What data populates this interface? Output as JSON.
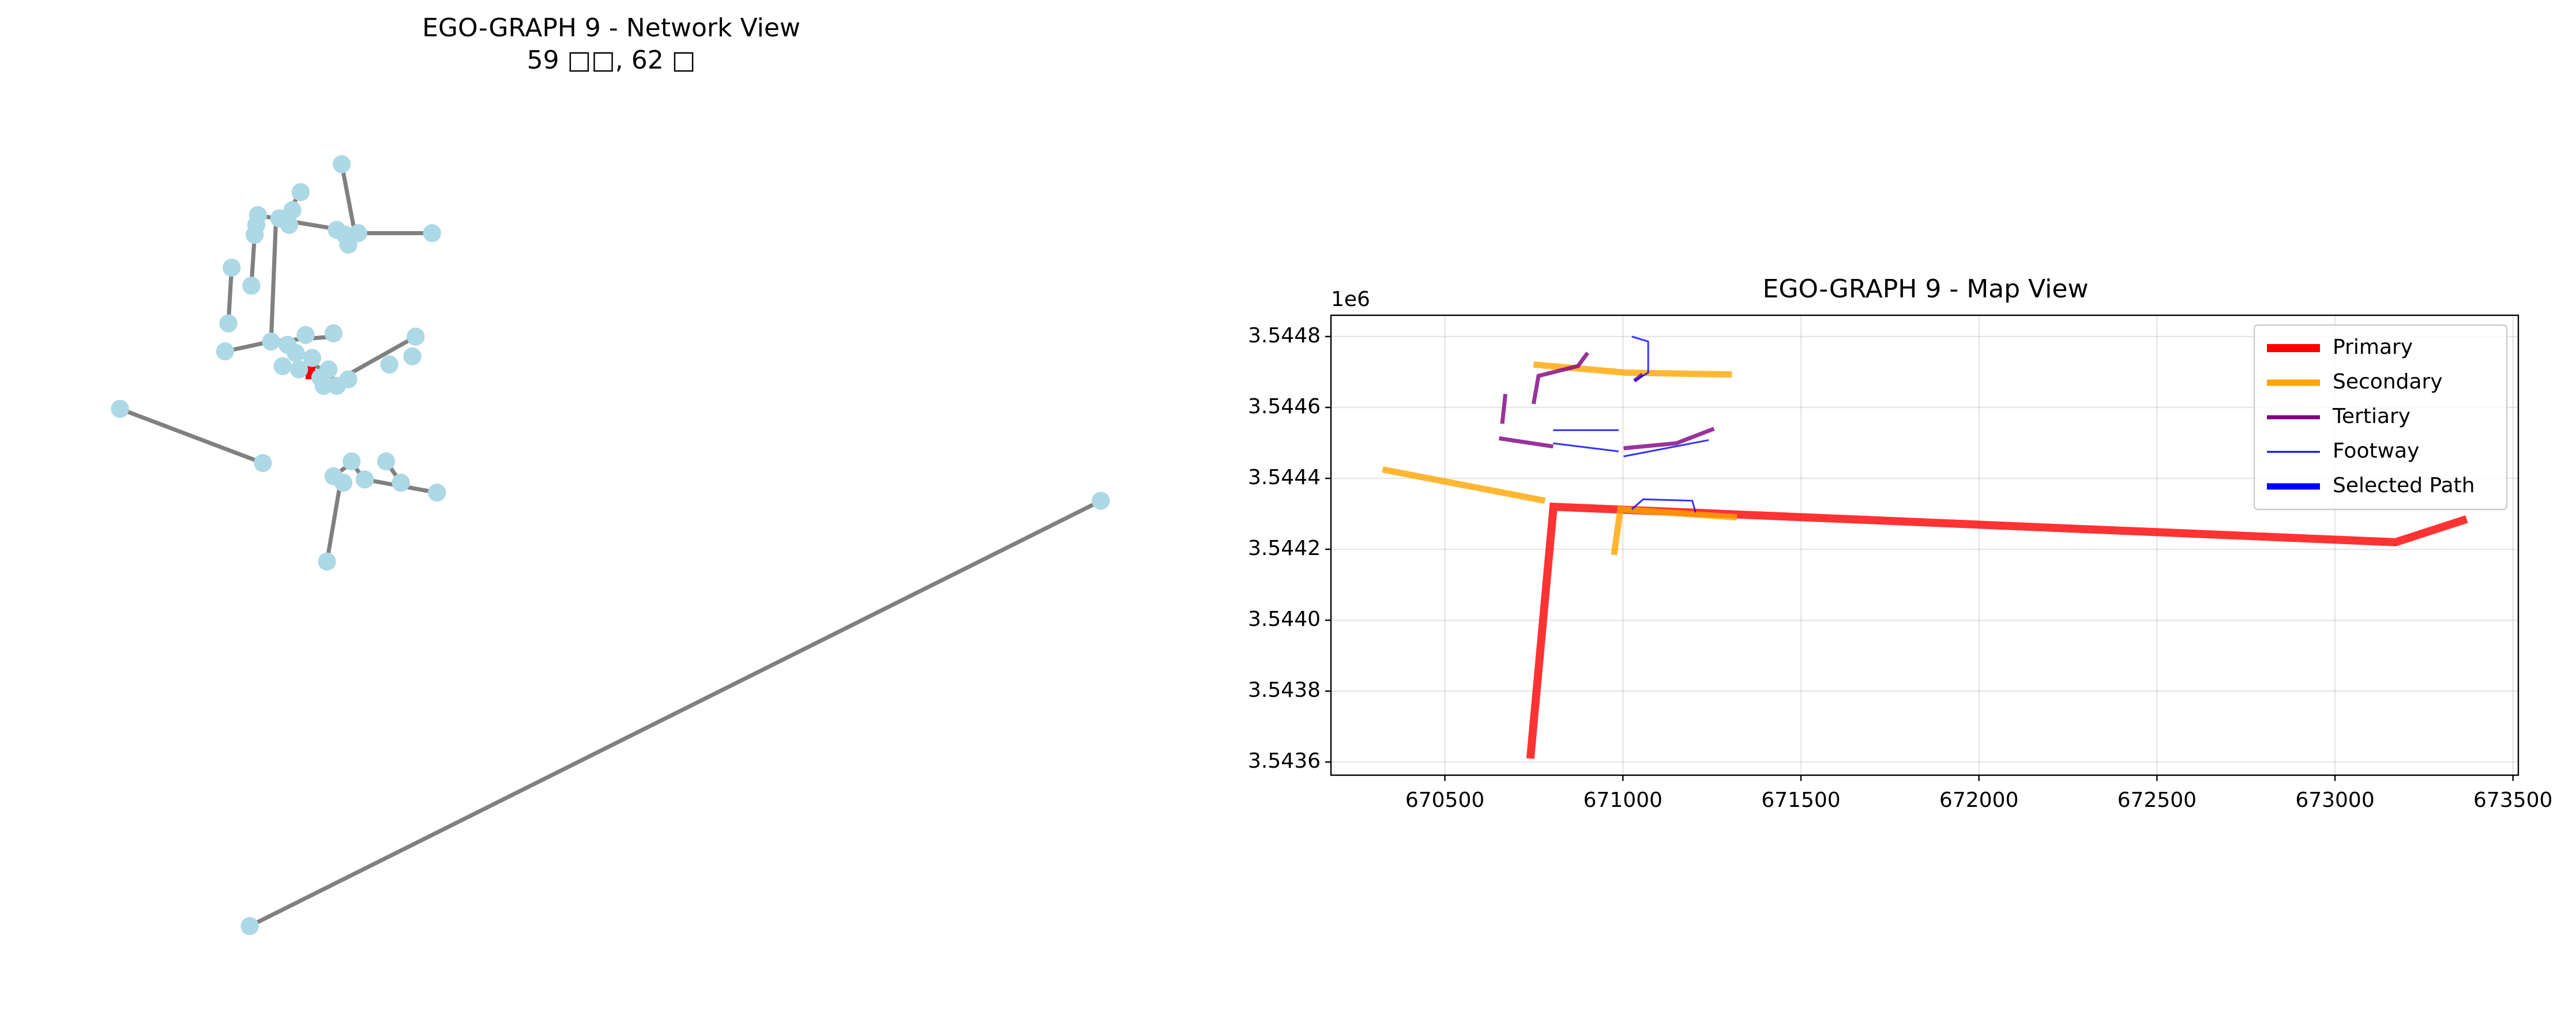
{
  "chart_data": [
    {
      "type": "network",
      "title": "EGO-GRAPH 9 - Network View",
      "subtitle": "59 □□, 62 □"
    },
    {
      "type": "line",
      "title": "EGO-GRAPH 9 - Map View",
      "y_offset_label": "1e6",
      "xlim": [
        670180,
        673515
      ],
      "ylim": [
        3543563,
        3544860
      ],
      "xticks": [
        670500,
        671000,
        671500,
        672000,
        672500,
        673000,
        673500
      ],
      "yticks": [
        {
          "value": 3543600,
          "label": "3.5436"
        },
        {
          "value": 3543800,
          "label": "3.5438"
        },
        {
          "value": 3544000,
          "label": "3.5440"
        },
        {
          "value": 3544200,
          "label": "3.5442"
        },
        {
          "value": 3544400,
          "label": "3.5444"
        },
        {
          "value": 3544600,
          "label": "3.5446"
        },
        {
          "value": 3544800,
          "label": "3.5448"
        }
      ],
      "grid": true,
      "legend": "upper right",
      "series": [
        {
          "name": "Primary",
          "color": "#ff0000",
          "x": [
            670740,
            670805,
            673170,
            673370
          ],
          "y": [
            3543610,
            3544320,
            3544220,
            3544285
          ]
        },
        {
          "name": "Secondary",
          "color": "#ffa500",
          "x": [
            670325,
            670781,
            null,
            670749,
            671011,
            671306,
            null,
            670975,
            670993,
            671320
          ],
          "y": [
            3544425,
            3544337,
            null,
            3544721,
            3544698,
            3544693,
            null,
            3544184,
            3544313,
            3544290
          ]
        },
        {
          "name": "Tertiary",
          "color": "#800080",
          "x": [
            670670,
            670661,
            null,
            670652,
            670804,
            null,
            670749,
            670763,
            670874,
            670901,
            null,
            671002,
            671150,
            671256,
            null,
            671032,
            671055
          ],
          "y": [
            3544638,
            3544554,
            null,
            3544513,
            3544490,
            null,
            3544610,
            3544689,
            3544717,
            3544754,
            null,
            3544485,
            3544499,
            3544540,
            null,
            3544675,
            3544693
          ]
        },
        {
          "name": "Footway",
          "color": "#0000ff",
          "x": [
            671025,
            671071,
            671071,
            671032,
            null,
            670804,
            670988,
            null,
            670804,
            670988,
            null,
            671002,
            671241,
            null,
            671025,
            671057,
            671195,
            671204
          ],
          "y": [
            3544800,
            3544786,
            3544698,
            3544675,
            null,
            3544536,
            3544536,
            null,
            3544499,
            3544476,
            null,
            3544462,
            3544508,
            null,
            3544313,
            3544341,
            3544337,
            3544304
          ]
        },
        {
          "name": "Selected Path",
          "color": "#0000ff",
          "x": [],
          "y": []
        }
      ]
    }
  ]
}
